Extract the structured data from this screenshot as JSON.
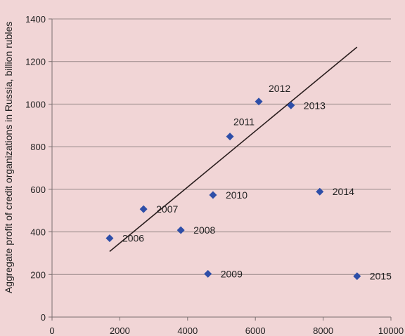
{
  "chart_data": {
    "type": "scatter",
    "title": "",
    "xlabel": "",
    "ylabel": "Aggregate profit of credit organizations in Russia, billion rubles",
    "xlim": [
      0,
      10000
    ],
    "ylim": [
      0,
      1400
    ],
    "x_ticks": [
      0,
      2000,
      4000,
      6000,
      8000,
      10000
    ],
    "y_ticks": [
      0,
      200,
      400,
      600,
      800,
      1000,
      1200,
      1400
    ],
    "grid": "horizontal",
    "legend": "none",
    "marker_color": "#2e4ea8",
    "trendline_color": "#2a1e1e",
    "background_color": "#f1d5d6",
    "points": [
      {
        "label": "2006",
        "x": 1700,
        "y": 370
      },
      {
        "label": "2007",
        "x": 2700,
        "y": 507
      },
      {
        "label": "2008",
        "x": 3800,
        "y": 408
      },
      {
        "label": "2009",
        "x": 4600,
        "y": 203
      },
      {
        "label": "2010",
        "x": 4750,
        "y": 573
      },
      {
        "label": "2011",
        "x": 5250,
        "y": 848
      },
      {
        "label": "2012",
        "x": 6100,
        "y": 1012
      },
      {
        "label": "2013",
        "x": 7050,
        "y": 994
      },
      {
        "label": "2014",
        "x": 7900,
        "y": 589
      },
      {
        "label": "2015",
        "x": 9000,
        "y": 192
      }
    ],
    "trendline": {
      "x": [
        1700,
        9000
      ],
      "y": [
        308,
        1268
      ]
    }
  }
}
